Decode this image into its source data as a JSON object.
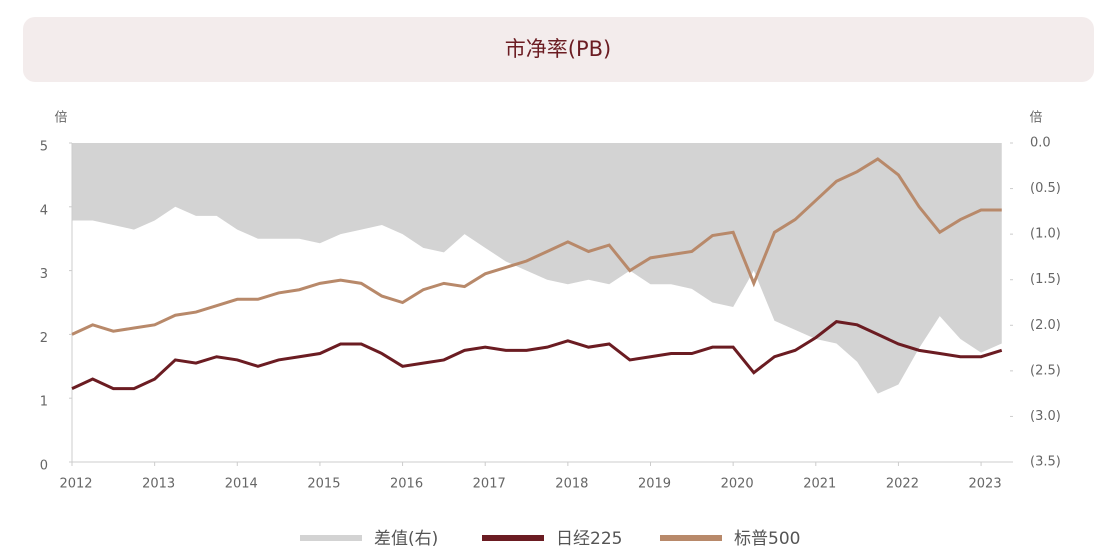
{
  "chart_data": {
    "type": "line",
    "title": "市净率(PB)",
    "y_unit": "倍",
    "y2_unit": "倍",
    "x": [
      2012,
      2012.25,
      2012.5,
      2012.75,
      2013,
      2013.25,
      2013.5,
      2013.75,
      2014,
      2014.25,
      2014.5,
      2014.75,
      2015,
      2015.25,
      2015.5,
      2015.75,
      2016,
      2016.25,
      2016.5,
      2016.75,
      2017,
      2017.25,
      2017.5,
      2017.75,
      2018,
      2018.25,
      2018.5,
      2018.75,
      2019,
      2019.25,
      2019.5,
      2019.75,
      2020,
      2020.25,
      2020.5,
      2020.75,
      2021,
      2021.25,
      2021.5,
      2021.75,
      2022,
      2022.25,
      2022.5,
      2022.75,
      2023,
      2023.25
    ],
    "series": [
      {
        "name": "差值(右)",
        "color": "#d3d3d3",
        "axis": "y2",
        "style": "area",
        "values": [
          -0.85,
          -0.85,
          -0.9,
          -0.95,
          -0.85,
          -0.7,
          -0.8,
          -0.8,
          -0.95,
          -1.05,
          -1.05,
          -1.05,
          -1.1,
          -1.0,
          -0.95,
          -0.9,
          -1.0,
          -1.15,
          -1.2,
          -1.0,
          -1.15,
          -1.3,
          -1.4,
          -1.5,
          -1.55,
          -1.5,
          -1.55,
          -1.4,
          -1.55,
          -1.55,
          -1.6,
          -1.75,
          -1.8,
          -1.4,
          -1.95,
          -2.05,
          -2.15,
          -2.2,
          -2.4,
          -2.75,
          -2.65,
          -2.25,
          -1.9,
          -2.15,
          -2.3,
          -2.2
        ]
      },
      {
        "name": "日经225",
        "color": "#6b1c22",
        "values": [
          1.15,
          1.3,
          1.15,
          1.15,
          1.3,
          1.6,
          1.55,
          1.65,
          1.6,
          1.5,
          1.6,
          1.65,
          1.7,
          1.85,
          1.85,
          1.7,
          1.5,
          1.55,
          1.6,
          1.75,
          1.8,
          1.75,
          1.75,
          1.8,
          1.9,
          1.8,
          1.85,
          1.6,
          1.65,
          1.7,
          1.7,
          1.8,
          1.8,
          1.4,
          1.65,
          1.75,
          1.95,
          2.2,
          2.15,
          2.0,
          1.85,
          1.75,
          1.7,
          1.65,
          1.65,
          1.75
        ]
      },
      {
        "name": "标普500",
        "color": "#b8896a",
        "values": [
          2.0,
          2.15,
          2.05,
          2.1,
          2.15,
          2.3,
          2.35,
          2.45,
          2.55,
          2.55,
          2.65,
          2.7,
          2.8,
          2.85,
          2.8,
          2.6,
          2.5,
          2.7,
          2.8,
          2.75,
          2.95,
          3.05,
          3.15,
          3.3,
          3.45,
          3.3,
          3.4,
          3.0,
          3.2,
          3.25,
          3.3,
          3.55,
          3.6,
          2.8,
          3.6,
          3.8,
          4.1,
          4.4,
          4.55,
          4.75,
          4.5,
          4.0,
          3.6,
          3.8,
          3.95,
          3.95
        ]
      }
    ],
    "xlim": [
      2012,
      2023.35
    ],
    "xticks": [
      2012,
      2013,
      2014,
      2015,
      2016,
      2017,
      2018,
      2019,
      2020,
      2021,
      2022,
      2023
    ],
    "ylim": [
      0,
      5
    ],
    "yticks": [
      0,
      1,
      2,
      3,
      4,
      5
    ],
    "y2lim": [
      0,
      -3.5
    ],
    "y2ticks": [
      {
        "value": 0,
        "label": "0.0"
      },
      {
        "value": -0.5,
        "label": "(0.5)"
      },
      {
        "value": -1,
        "label": "(1.0)"
      },
      {
        "value": -1.5,
        "label": "(1.5)"
      },
      {
        "value": -2,
        "label": "(2.0)"
      },
      {
        "value": -2.5,
        "label": "(2.5)"
      },
      {
        "value": -3,
        "label": "(3.0)"
      },
      {
        "value": -3.5,
        "label": "(3.5)"
      }
    ],
    "legend": "bottom"
  }
}
